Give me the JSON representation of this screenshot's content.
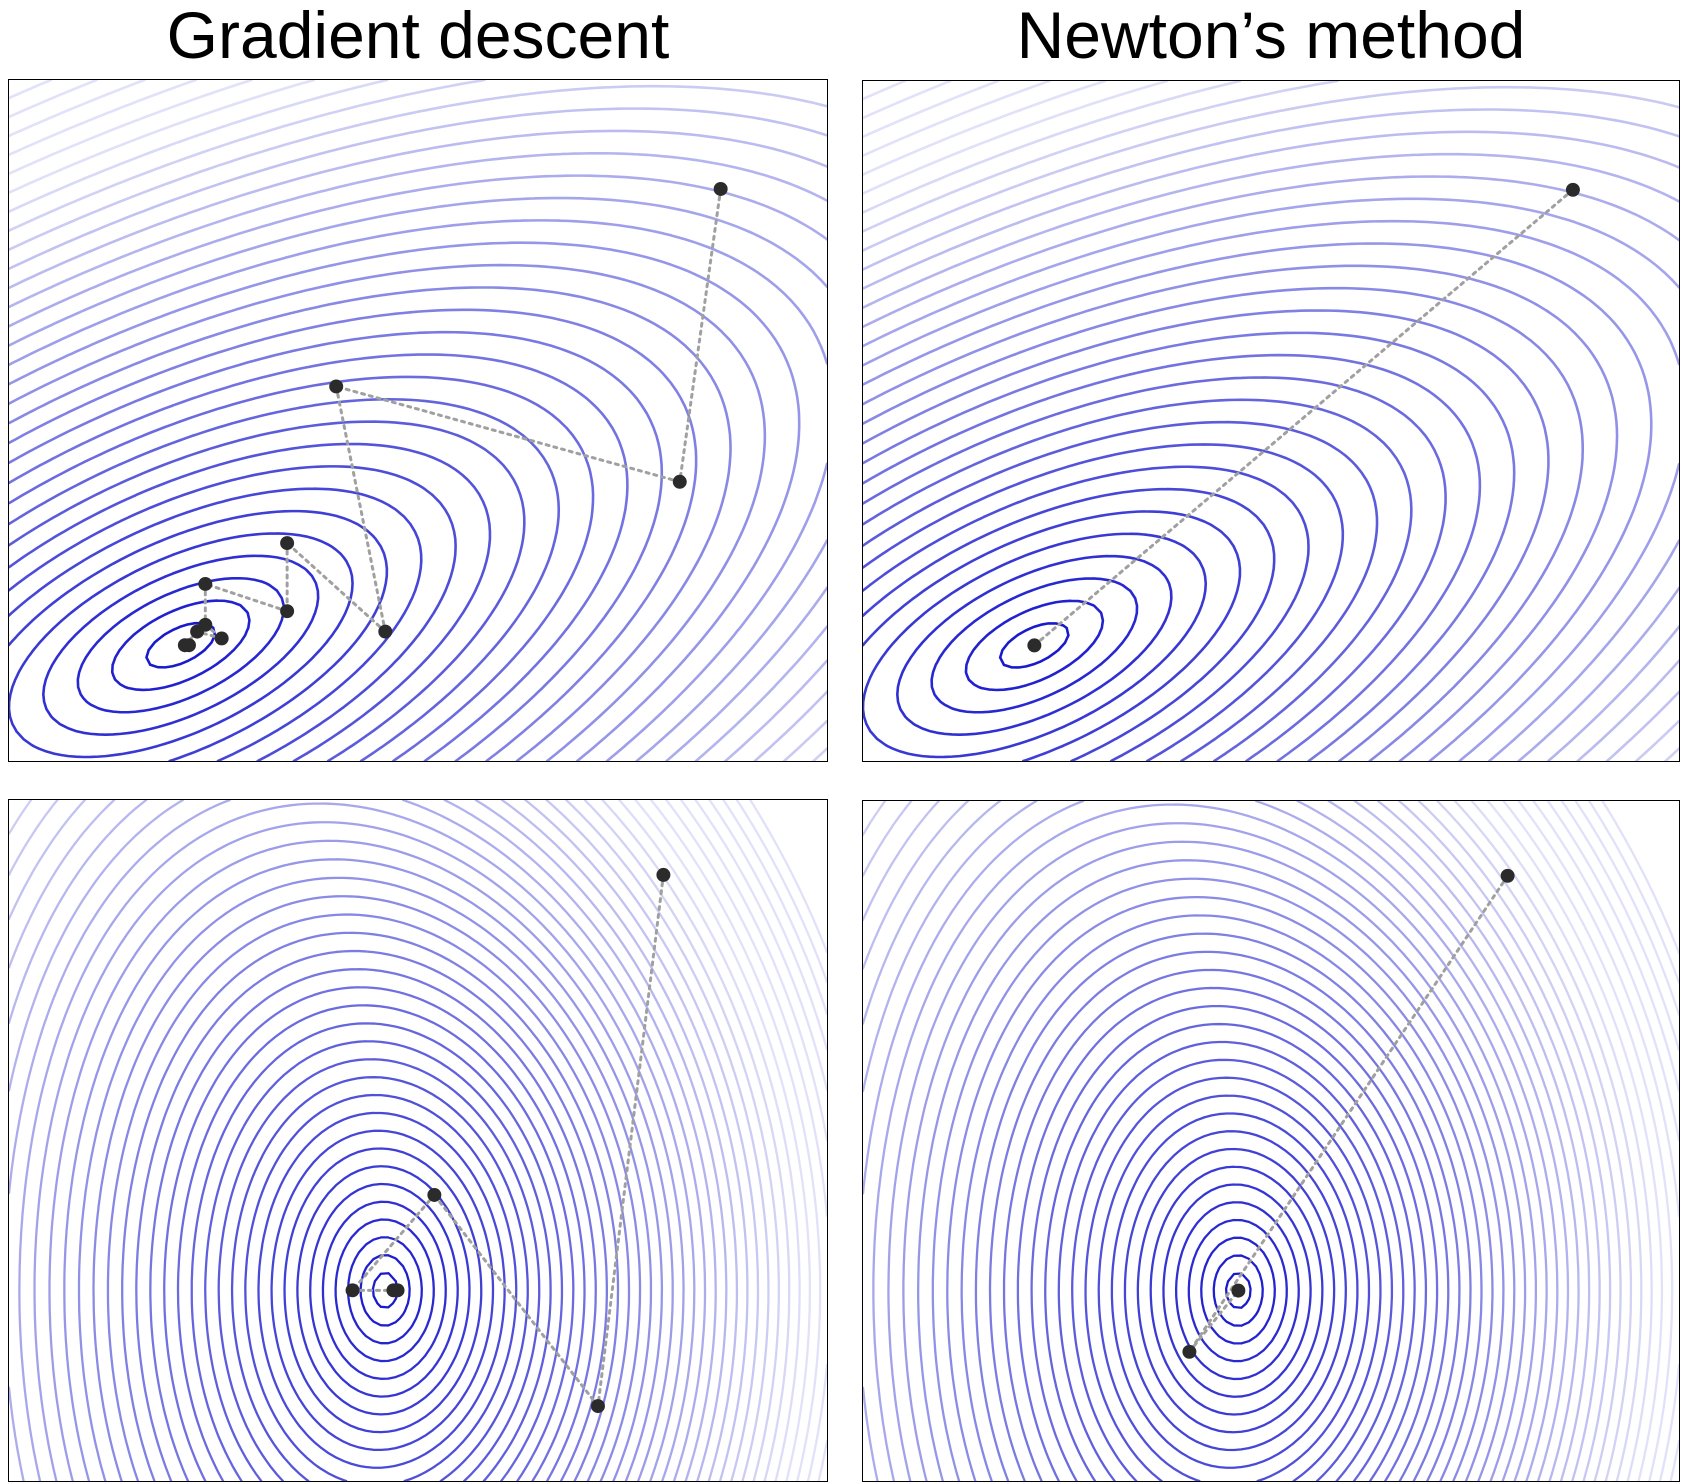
{
  "titles": {
    "gradient_descent": "Gradient descent",
    "newtons_method": "Newton’s method"
  },
  "colors": {
    "contour": "#1a1acd",
    "path": "#a0a0a0",
    "point": "#2b2b2b",
    "frame": "#000000"
  },
  "panels": [
    {
      "id": "gd-top",
      "method": "Gradient descent",
      "function": "quadratic",
      "iterates": [
        [
          0.87,
          0.84
        ],
        [
          0.82,
          0.41
        ],
        [
          0.4,
          0.55
        ],
        [
          0.46,
          0.19
        ],
        [
          0.34,
          0.32
        ],
        [
          0.34,
          0.22
        ],
        [
          0.24,
          0.26
        ],
        [
          0.24,
          0.2
        ],
        [
          0.26,
          0.18
        ],
        [
          0.23,
          0.19
        ],
        [
          0.215,
          0.17
        ],
        [
          0.22,
          0.17
        ]
      ]
    },
    {
      "id": "nt-top",
      "method": "Newton’s method",
      "function": "quadratic",
      "iterates": [
        [
          0.87,
          0.84
        ],
        [
          0.21,
          0.17
        ]
      ]
    },
    {
      "id": "gd-bot",
      "method": "Gradient descent",
      "function": "non-quadratic",
      "iterates": [
        [
          0.8,
          0.89
        ],
        [
          0.72,
          0.11
        ],
        [
          0.52,
          0.42
        ],
        [
          0.42,
          0.28
        ],
        [
          0.47,
          0.28
        ],
        [
          0.475,
          0.28
        ]
      ]
    },
    {
      "id": "nt-bot",
      "method": "Newton’s method",
      "function": "non-quadratic",
      "iterates": [
        [
          0.79,
          0.89
        ],
        [
          0.4,
          0.19
        ],
        [
          0.46,
          0.28
        ]
      ]
    }
  ]
}
